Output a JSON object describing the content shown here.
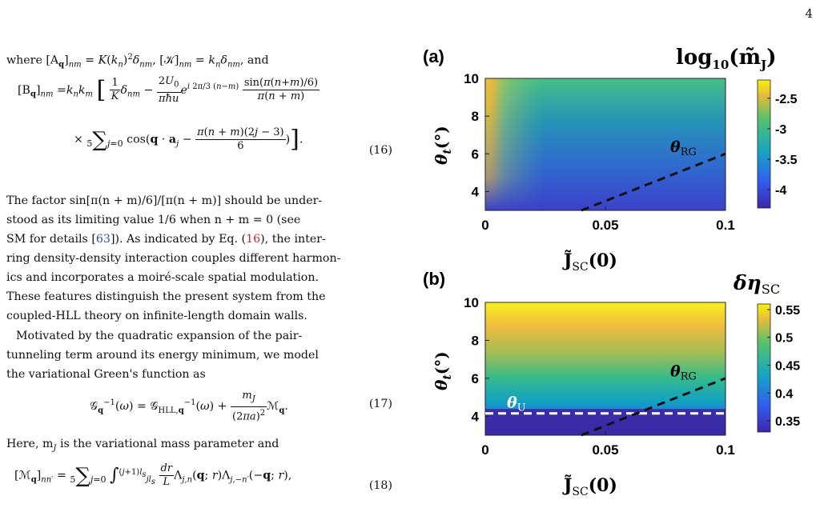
{
  "page": {
    "number": "4"
  },
  "text": {
    "intro": "where [A",
    "intro_tail": "and",
    "bq_label": "[B",
    "eq16_num": "(16)",
    "para1": [
      "The factor sin[π(n + m)/6]/[π(n + m)] should be under-",
      "stood as its limiting value 1/6 when  n + m  =  0 (see",
      "SM for details [",
      "ring density-density interaction couples different harmon-",
      "ics and incorporates a moiré-scale spatial modulation.",
      "These features distinguish the present system from the",
      "coupled-HLL theory on infinite-length domain walls."
    ],
    "para1_cite": "63",
    "para1_line3_mid": "]). As indicated by Eq. (",
    "para1_ref": "16",
    "para1_line3_end": "), the inter-",
    "para2": [
      "Motivated by the quadratic expansion of the pair-",
      "tunneling term around its energy minimum, we model",
      "the variational Green's function as"
    ],
    "eq17_num": "(17)",
    "para3": "Here, m",
    "para3_tail": " is the variational mass parameter and",
    "eq18_num": "(18)"
  },
  "figure": {
    "panel_a": {
      "label": "(a)",
      "colorbar_title": "log₁₀(m̃J)",
      "ylabel": "θt(°)",
      "xlabel": "J̃SC(0)",
      "annotation": "θRG",
      "colors": {
        "warm": "#f3c03a",
        "mid": "#40bc87",
        "cool": "#2c74dc",
        "low": "#3b2ea7"
      }
    },
    "panel_b": {
      "label": "(b)",
      "colorbar_title": "δηSC",
      "ylabel": "θt(°)",
      "xlabel": "J̃SC(0)",
      "annotation_rg": "θRG",
      "annotation_u": "θU"
    }
  },
  "chart_data": [
    {
      "type": "heatmap",
      "title": "log₁₀(m̃J)",
      "xlabel": "J̃SC(0)",
      "ylabel": "θt(°)",
      "xlim": [
        0,
        0.1
      ],
      "ylim": [
        3,
        10
      ],
      "x_ticks": [
        "0",
        "0.05",
        "0.1"
      ],
      "y_ticks": [
        "4",
        "6",
        "8",
        "10"
      ],
      "colorbar": {
        "range": [
          -4.3,
          -2.2
        ],
        "ticks": [
          "-2.5",
          "-3",
          "-3.5",
          "-4"
        ]
      },
      "rg_line": {
        "x": [
          0.04,
          0.1
        ],
        "y": [
          3,
          6
        ]
      }
    },
    {
      "type": "heatmap",
      "title": "δηSC",
      "xlabel": "J̃SC(0)",
      "ylabel": "θt(°)",
      "xlim": [
        0,
        0.1
      ],
      "ylim": [
        3,
        10
      ],
      "x_ticks": [
        "0",
        "0.05",
        "0.1"
      ],
      "y_ticks": [
        "4",
        "6",
        "8",
        "10"
      ],
      "colorbar": {
        "range": [
          0.33,
          0.56
        ],
        "ticks": [
          "0.55",
          "0.5",
          "0.45",
          "0.4",
          "0.35"
        ]
      },
      "rg_line": {
        "x": [
          0.04,
          0.1
        ],
        "y": [
          3,
          6
        ]
      },
      "u_line": {
        "y": 4.15
      }
    }
  ]
}
